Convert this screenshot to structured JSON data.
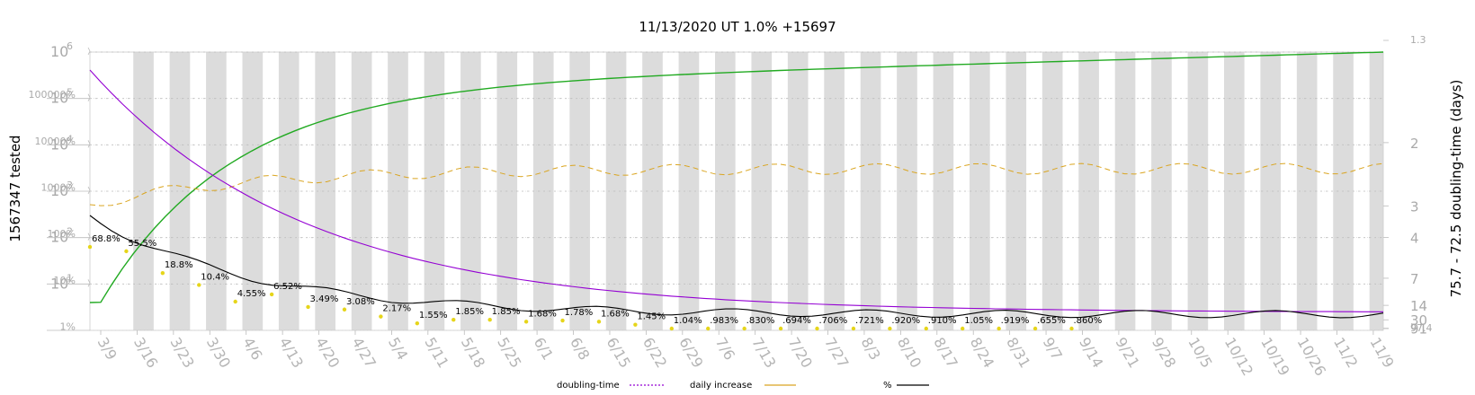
{
  "chart_data": {
    "type": "line",
    "title": "11/13/2020 UT 1.0% +15697",
    "ylabel_left": "1567347 tested",
    "ylabel_right": "75.7 - 72.5 doubling-time (days)",
    "y_scale": "log",
    "ylim_left": [
      1,
      1000000
    ],
    "left_major_ticks": [
      {
        "base": "10",
        "exp": "1",
        "value": 10
      },
      {
        "base": "10",
        "exp": "2",
        "value": 100
      },
      {
        "base": "10",
        "exp": "3",
        "value": 1000
      },
      {
        "base": "10",
        "exp": "4",
        "value": 10000
      },
      {
        "base": "10",
        "exp": "5",
        "value": 100000
      },
      {
        "base": "10",
        "exp": "6",
        "value": 1000000
      }
    ],
    "percent_ticks": [
      {
        "label": "1%",
        "value": 1
      },
      {
        "label": "10%",
        "value": 10
      },
      {
        "label": "100%",
        "value": 100
      },
      {
        "label": "1000%",
        "value": 1000
      },
      {
        "label": "10000%",
        "value": 10000
      },
      {
        "label": "100000%",
        "value": 100000
      }
    ],
    "right_ticks": [
      {
        "label": "1.3",
        "value": 1.3
      },
      {
        "label": "2",
        "value": 2
      },
      {
        "label": "3",
        "value": 3
      },
      {
        "label": "4",
        "value": 4
      },
      {
        "label": "7",
        "value": 7
      },
      {
        "label": "14",
        "value": 14
      },
      {
        "label": "30",
        "value": 30
      },
      {
        "label": "91",
        "value": 91
      },
      {
        "label": "97.4",
        "value": 97.4
      }
    ],
    "x_labels": [
      "3/9",
      "3/16",
      "3/23",
      "3/30",
      "4/6",
      "4/13",
      "4/20",
      "4/27",
      "5/4",
      "5/11",
      "5/18",
      "5/25",
      "6/1",
      "6/8",
      "6/15",
      "6/22",
      "6/29",
      "7/6",
      "7/13",
      "7/20",
      "7/27",
      "8/3",
      "8/10",
      "8/17",
      "8/24",
      "8/31",
      "9/7",
      "9/14",
      "9/21",
      "9/28",
      "10/5",
      "10/12",
      "10/19",
      "10/26",
      "11/2",
      "11/9"
    ],
    "x_start": "2020-03-09",
    "x_end": "2020-11-13",
    "grid": true,
    "shaded_weekends": true,
    "annotations": [
      {
        "text": "68.8%",
        "date": "2020-03-09",
        "value": 68.8
      },
      {
        "text": "55.5%",
        "date": "2020-03-16",
        "value": 55.5
      },
      {
        "text": "18.8%",
        "date": "2020-03-23",
        "value": 18.8
      },
      {
        "text": "10.4%",
        "date": "2020-03-30",
        "value": 10.4
      },
      {
        "text": "4.55%",
        "date": "2020-04-06",
        "value": 4.55
      },
      {
        "text": "6.52%",
        "date": "2020-04-13",
        "value": 6.52
      },
      {
        "text": "3.49%",
        "date": "2020-04-20",
        "value": 3.49
      },
      {
        "text": "3.08%",
        "date": "2020-04-27",
        "value": 3.08
      },
      {
        "text": "2.17%",
        "date": "2020-05-04",
        "value": 2.17
      },
      {
        "text": "1.55%",
        "date": "2020-05-11",
        "value": 1.55
      },
      {
        "text": "1.85%",
        "date": "2020-05-18",
        "value": 1.85
      },
      {
        "text": "1.85%",
        "date": "2020-05-25",
        "value": 1.85
      },
      {
        "text": "1.68%",
        "date": "2020-06-01",
        "value": 1.68
      },
      {
        "text": "1.78%",
        "date": "2020-06-08",
        "value": 1.78
      },
      {
        "text": "1.68%",
        "date": "2020-06-15",
        "value": 1.68
      },
      {
        "text": "1.45%",
        "date": "2020-06-22",
        "value": 1.45
      },
      {
        "text": "1.04%",
        "date": "2020-06-29",
        "value": 1.04
      },
      {
        "text": ".983%",
        "date": "2020-07-06",
        "value": 0.983
      },
      {
        "text": ".830%",
        "date": "2020-07-13",
        "value": 0.83
      },
      {
        "text": ".694%",
        "date": "2020-07-20",
        "value": 0.694
      },
      {
        "text": ".706%",
        "date": "2020-07-27",
        "value": 0.706
      },
      {
        "text": ".721%",
        "date": "2020-08-03",
        "value": 0.721
      },
      {
        "text": ".920%",
        "date": "2020-08-10",
        "value": 0.92
      },
      {
        "text": ".910%",
        "date": "2020-08-17",
        "value": 0.91
      },
      {
        "text": "1.05%",
        "date": "2020-08-24",
        "value": 1.05
      },
      {
        "text": ".919%",
        "date": "2020-08-31",
        "value": 0.919
      },
      {
        "text": ".655%",
        "date": "2020-09-07",
        "value": 0.655
      },
      {
        "text": ".860%",
        "date": "2020-09-14",
        "value": 0.86
      }
    ],
    "series": [
      {
        "name": "doubling-time",
        "color": "#9400d3",
        "style": "dotted"
      },
      {
        "name": "daily increase",
        "color": "#daa520",
        "style": "solid"
      },
      {
        "name": "%",
        "color": "#000000",
        "style": "solid"
      }
    ]
  }
}
